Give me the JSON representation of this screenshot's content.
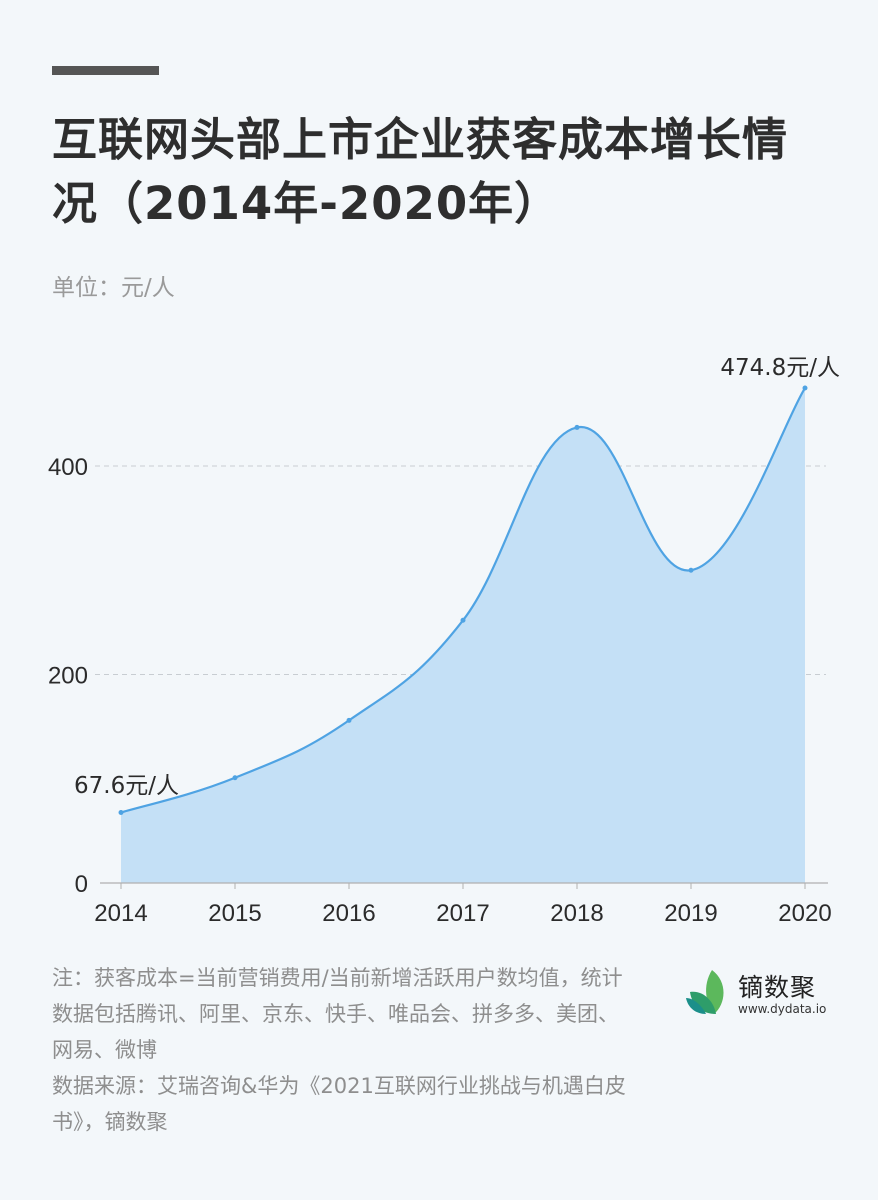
{
  "header": {
    "title": "互联网头部上市企业获客成本增长情况（2014年-2020年）",
    "unit": "单位：元/人"
  },
  "notes": [
    "注：获客成本=当前营销费用/当前新增活跃用户数均值，统计数据包括腾讯、阿里、京东、快手、唯品会、拼多多、美团、网易、微博",
    "数据来源：艾瑞咨询&华为《2021互联网行业挑战与机遇白皮书》，镝数聚"
  ],
  "logo": {
    "name": "镝数聚",
    "url": "www.dydata.io"
  },
  "colors": {
    "line": "#4fa3e3",
    "area": "#c4e0f6",
    "grid": "#c8cdd2",
    "background": "#f3f7fa",
    "logo_green": "#3aa35b",
    "logo_teal": "#1b8f8a"
  },
  "chart_data": {
    "type": "area",
    "title": "互联网头部上市企业获客成本增长情况（2014年-2020年）",
    "xlabel": "",
    "ylabel": "单位：元/人",
    "categories": [
      "2014",
      "2015",
      "2016",
      "2017",
      "2018",
      "2019",
      "2020"
    ],
    "series": [
      {
        "name": "获客成本",
        "values": [
          67.6,
          101,
          156,
          252,
          437,
          300,
          474.8
        ]
      }
    ],
    "ylim": [
      0,
      500
    ],
    "yticks": [
      0,
      200,
      400
    ],
    "grid": true,
    "smooth": true,
    "annotations": [
      {
        "x": "2014",
        "label": "67.6元/人"
      },
      {
        "x": "2020",
        "label": "474.8元/人"
      }
    ]
  }
}
